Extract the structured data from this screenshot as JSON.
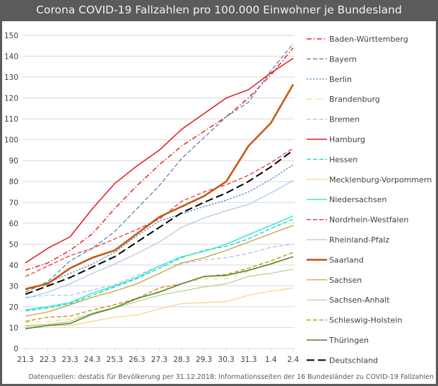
{
  "chart_data": {
    "type": "line",
    "title": "Corona COVID-19 Fallzahlen pro 100.000 Einwohner je Bundesland",
    "xlabel": "",
    "ylabel": "",
    "x": [
      "21.3",
      "22.3",
      "23.3",
      "24.3",
      "25.3",
      "26.3",
      "27.3",
      "28.3",
      "29.3",
      "30.3",
      "31.3",
      "1.4",
      "2.4"
    ],
    "ylim": [
      0,
      150
    ],
    "yticks": [
      0,
      10,
      20,
      30,
      40,
      50,
      60,
      70,
      80,
      90,
      100,
      110,
      120,
      130,
      140,
      150
    ],
    "grid": true,
    "legend_position": "right",
    "source_note": "Datenquellen: destatis für Bevölkerung per 31.12.2018; Informationsseiten der 16 Bundesländer zu COVID-19 Fallzahlen",
    "series": [
      {
        "name": "Baden-Württemberg",
        "color": "#e8212b",
        "style": "dashdot",
        "width": 1.5,
        "values": [
          37.5,
          41,
          47,
          55,
          67,
          78,
          88,
          97,
          104,
          111,
          120,
          131,
          144
        ]
      },
      {
        "name": "Bayern",
        "color": "#4f7aa6",
        "style": "dash",
        "width": 1.2,
        "values": [
          27,
          32,
          42,
          48,
          56,
          67,
          78,
          91,
          101,
          111,
          118,
          133,
          146
        ]
      },
      {
        "name": "Berlin",
        "color": "#3d7fc4",
        "style": "dot",
        "width": 1.2,
        "values": [
          28,
          31.5,
          36,
          40.5,
          46,
          54,
          61,
          64.5,
          68,
          71,
          75,
          81,
          88
        ]
      },
      {
        "name": "Brandenburg",
        "color": "#f5d66a",
        "style": "dashdot",
        "width": 1.2,
        "values": [
          12.5,
          13,
          14,
          17,
          20,
          23.5,
          27.5,
          31,
          33.5,
          33.5,
          37,
          41,
          44
        ]
      },
      {
        "name": "Bremen",
        "color": "#a9c4e3",
        "style": "dash",
        "width": 1.2,
        "values": [
          24.5,
          25.5,
          25.5,
          28,
          30.5,
          35,
          39.5,
          40.5,
          42.5,
          43.5,
          45.5,
          48.5,
          50
        ]
      },
      {
        "name": "Hamburg",
        "color": "#e3161f",
        "style": "solid",
        "width": 1.5,
        "values": [
          41,
          48,
          53.5,
          67,
          79,
          87.5,
          95,
          105,
          112.5,
          120,
          124,
          132,
          139
        ]
      },
      {
        "name": "Hessen",
        "color": "#2fd6d0",
        "style": "dash",
        "width": 1.5,
        "values": [
          18,
          19.5,
          21.5,
          25.5,
          29.5,
          33.5,
          38.5,
          43.5,
          47,
          49,
          52.5,
          57.5,
          62
        ]
      },
      {
        "name": "Mecklenburg-Vorpommern",
        "color": "#f7d37c",
        "style": "solid",
        "width": 1.2,
        "values": [
          10.5,
          11,
          11,
          13,
          15,
          16,
          19,
          21.5,
          22,
          22.5,
          25.5,
          27.5,
          29
        ]
      },
      {
        "name": "Niedersachsen",
        "color": "#3ee8d4",
        "style": "solid",
        "width": 1.5,
        "values": [
          18.5,
          20,
          22,
          26.5,
          30,
          34,
          39.5,
          44,
          46.5,
          50,
          54.5,
          59,
          63.5
        ]
      },
      {
        "name": "Nordrhein-Westfalen",
        "color": "#e8262e",
        "style": "dash",
        "width": 1.2,
        "values": [
          34.5,
          39.5,
          44.5,
          48,
          52.5,
          57,
          62,
          70.5,
          75,
          78.5,
          83,
          89,
          96
        ]
      },
      {
        "name": "Rheinland-Pfalz",
        "color": "#a9c8e6",
        "style": "solid",
        "width": 1.2,
        "values": [
          24,
          27,
          31,
          36,
          40.5,
          45.5,
          51,
          58,
          62.5,
          66,
          69,
          74.5,
          80.5
        ]
      },
      {
        "name": "Saarland",
        "color": "#c55a11",
        "style": "solid",
        "width": 2.6,
        "values": [
          28.5,
          31,
          38.5,
          43.5,
          47,
          55,
          63,
          68,
          73,
          80,
          97,
          108,
          126.5
        ]
      },
      {
        "name": "Sachsen",
        "color": "#c9982c",
        "style": "solid",
        "width": 1.2,
        "values": [
          15.5,
          17.5,
          21,
          24.5,
          27.5,
          31,
          36,
          41,
          43.5,
          47,
          51,
          55,
          59
        ]
      },
      {
        "name": "Sachsen-Anhalt",
        "color": "#a9d18e",
        "style": "solid",
        "width": 1.2,
        "values": [
          11,
          11.5,
          13,
          17,
          19.5,
          22.5,
          25.5,
          27.5,
          29.5,
          31,
          34.5,
          36,
          38
        ]
      },
      {
        "name": "Schleswig-Holstein",
        "color": "#c9982c",
        "style": "dash",
        "width": 1.5,
        "values": [
          13,
          15,
          15.5,
          18.5,
          21,
          24,
          29,
          31,
          34.5,
          35.5,
          38.5,
          42,
          46
        ]
      },
      {
        "name": "Thüringen",
        "color": "#548235",
        "style": "solid",
        "width": 1.6,
        "values": [
          9.5,
          11,
          12,
          16.5,
          19.5,
          24,
          27,
          31,
          34.5,
          35,
          37.5,
          40.5,
          44
        ]
      },
      {
        "name": "Deutschland",
        "color": "#000000",
        "style": "longdash",
        "width": 2,
        "values": [
          26,
          30,
          34,
          39,
          44,
          51,
          58,
          65,
          70,
          74.5,
          80,
          87,
          95
        ]
      }
    ]
  }
}
